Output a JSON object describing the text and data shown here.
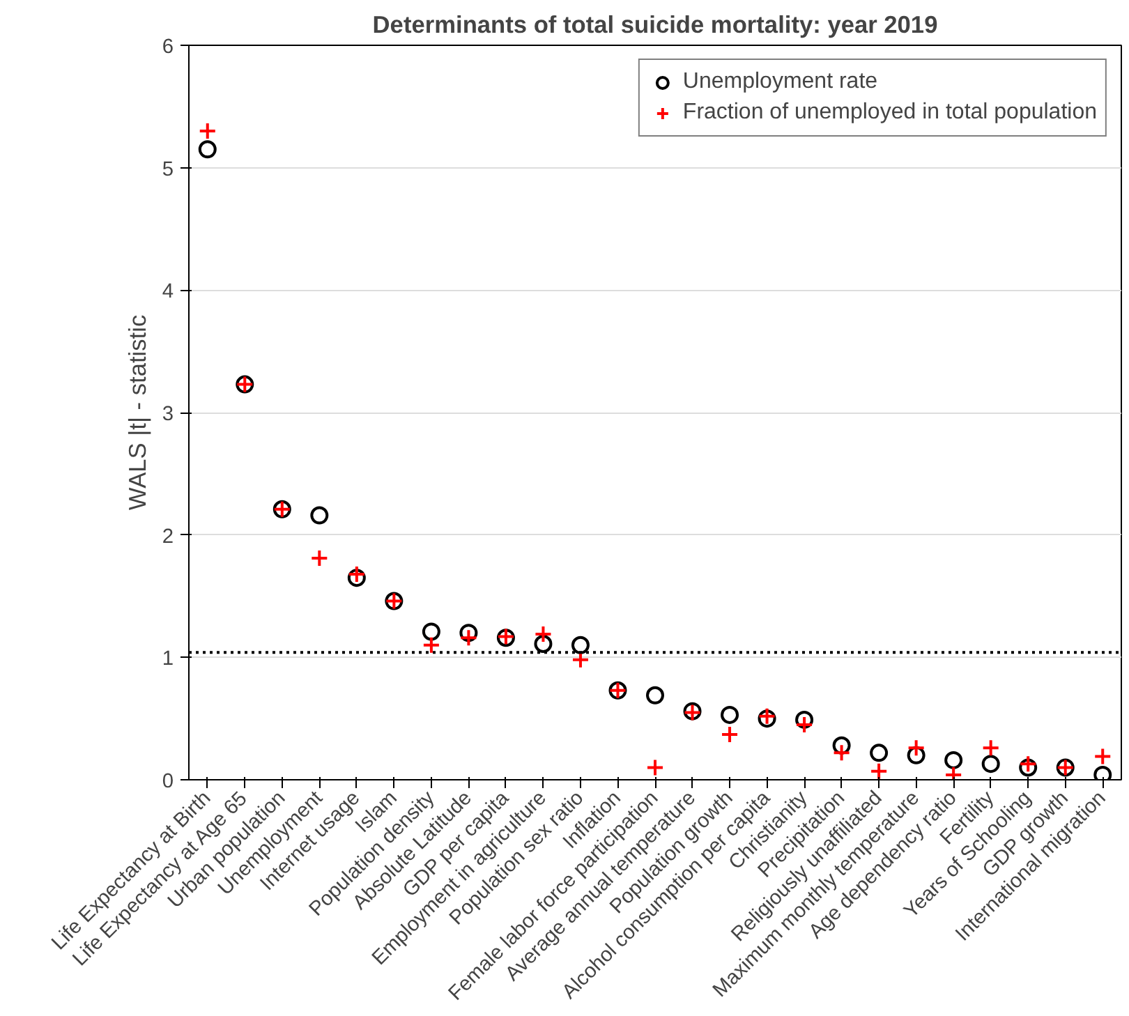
{
  "chart_data": {
    "type": "scatter",
    "title": "Determinants of total suicide mortality: year 2019",
    "ylabel": "WALS |t| - statistic",
    "categories": [
      "Life Expectancy at Birth",
      "Life Expectancy at Age 65",
      "Urban population",
      "Unemployment",
      "Internet usage",
      "Islam",
      "Population density",
      "Absolute Latitude",
      "GDP per capita",
      "Employment in agriculture",
      "Population sex ratio",
      "Inflation",
      "Female labor force participation",
      "Average annual temperature",
      "Population growth",
      "Alcohol consumption per capita",
      "Christianity",
      "Precipitation",
      "Religiously unaffiliated",
      "Maximum monthly temperature",
      "Age dependency ratio",
      "Fertility",
      "Years of Schooling",
      "GDP growth",
      "International migration"
    ],
    "series": [
      {
        "name": "Unemployment rate",
        "color": "#000000",
        "marker": "circle",
        "values": [
          5.15,
          3.23,
          2.21,
          2.16,
          1.65,
          1.46,
          1.21,
          1.2,
          1.16,
          1.11,
          1.1,
          0.73,
          0.69,
          0.56,
          0.53,
          0.5,
          0.49,
          0.28,
          0.22,
          0.2,
          0.16,
          0.13,
          0.1,
          0.1,
          0.04
        ]
      },
      {
        "name": "Fraction of unemployed in total population",
        "color": "#ff0000",
        "marker": "cross",
        "values": [
          5.3,
          3.23,
          2.21,
          1.81,
          1.68,
          1.46,
          1.1,
          1.16,
          1.17,
          1.19,
          0.98,
          0.73,
          0.1,
          0.55,
          0.37,
          0.52,
          0.45,
          0.22,
          0.07,
          0.26,
          0.04,
          0.26,
          0.13,
          0.1,
          0.19
        ]
      }
    ],
    "ylim": [
      0,
      6
    ],
    "yticks": [
      0,
      1,
      2,
      3,
      4,
      5,
      6
    ],
    "grid": "y",
    "legend": "top right",
    "ref_lines": [
      {
        "axis": "y",
        "value": 1.04,
        "color": "#000000",
        "line_style": "dotted"
      }
    ]
  }
}
